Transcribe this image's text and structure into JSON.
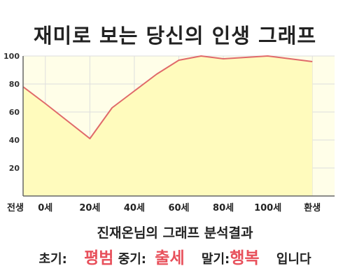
{
  "header": {
    "title": "재미로 보는 당신의 인생 그래프"
  },
  "chart_data": {
    "type": "area",
    "title": "재미로 보는 당신의 인생 그래프",
    "xlabel": "",
    "ylabel": "",
    "ylim": [
      0,
      100
    ],
    "xlim": [
      -10,
      130
    ],
    "yticks": [
      20,
      40,
      60,
      80,
      100
    ],
    "xticks": [
      {
        "x": -10,
        "label": "전생"
      },
      {
        "x": 0,
        "label": "0세"
      },
      {
        "x": 20,
        "label": "20세"
      },
      {
        "x": 40,
        "label": "40세"
      },
      {
        "x": 60,
        "label": "60세"
      },
      {
        "x": 80,
        "label": "80세"
      },
      {
        "x": 100,
        "label": "100세"
      },
      {
        "x": 120,
        "label": "환생"
      }
    ],
    "grid": true,
    "legend": "none",
    "colors": {
      "line": "#e06a6a",
      "fill": "#fffbbd",
      "plot_bg": "#fffee8",
      "grid": "#dedede"
    },
    "series": [
      {
        "x": [
          -10,
          0,
          20,
          30,
          40,
          50,
          60,
          70,
          80,
          90,
          100,
          110,
          120
        ],
        "values": [
          78,
          66,
          41,
          63,
          75,
          87,
          97,
          100,
          98,
          99,
          100,
          98,
          96
        ]
      }
    ]
  },
  "analysis": {
    "heading": "진재온님의 그래프 분석결과",
    "early_label": "초기:",
    "early_value": "평범",
    "middle_label": "중기:",
    "middle_value": "출세",
    "late_label": "말기:",
    "late_value": "행복",
    "suffix": "입니다"
  }
}
